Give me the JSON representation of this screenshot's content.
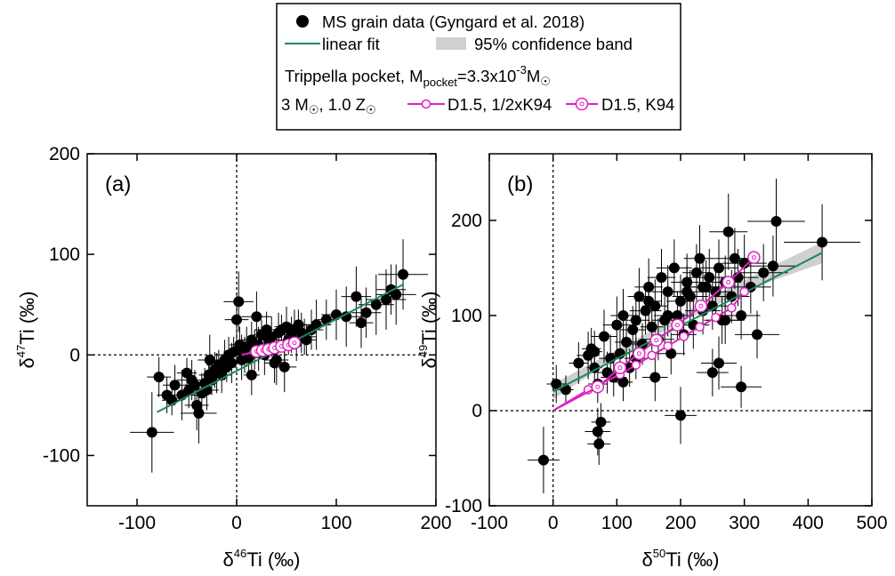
{
  "legend": {
    "grain_label": "MS grain data (Gyngard et al. 2018)",
    "fit_label": "linear fit",
    "band_label": "95% confidence band",
    "pocket_prefix": "Trippella pocket, M",
    "pocket_sub": "pocket",
    "pocket_mid": "=3.3x10",
    "pocket_exp": "-3",
    "pocket_unit": "M",
    "sun": "☉",
    "mass_label": "3 M",
    "z_label": ", 1.0 Z",
    "model1_label": "D1.5, 1/2xK94",
    "model2_label": "D1.5, K94",
    "colors": {
      "grains": "#000000",
      "fit": "#1a8a5a",
      "band": "#d0d0d0",
      "model": "#e020c0"
    }
  },
  "chart_data": [
    {
      "type": "scatter",
      "panel_label": "(a)",
      "xlabel": {
        "prefix": "δ",
        "sup": "46",
        "rest": "Ti (‰)"
      },
      "ylabel": {
        "prefix": "δ",
        "sup": "47",
        "rest": "Ti (‰)"
      },
      "xlim": [
        -150,
        200
      ],
      "ylim": [
        -150,
        200
      ],
      "xticks": [
        -100,
        0,
        100,
        200
      ],
      "yticks": [
        -100,
        0,
        100,
        200
      ],
      "reference_lines": {
        "x": 0,
        "y": 0,
        "style": "dotted"
      },
      "fit": {
        "x": [
          -80,
          167
        ],
        "y": [
          -57,
          70
        ]
      },
      "series": [
        {
          "kind": "grains",
          "x": [
            -85,
            -78,
            -70,
            -65,
            -62,
            -55,
            -50,
            -48,
            -45,
            -42,
            -40,
            -38,
            -35,
            -32,
            -30,
            -28,
            -27,
            -25,
            -22,
            -20,
            -18,
            -15,
            -12,
            -10,
            -8,
            -5,
            -3,
            0,
            2,
            3,
            5,
            5,
            8,
            10,
            12,
            15,
            18,
            20,
            22,
            25,
            28,
            30,
            32,
            35,
            38,
            40,
            42,
            45,
            48,
            50,
            52,
            55,
            58,
            60,
            62,
            65,
            68,
            70,
            75,
            80,
            90,
            100,
            110,
            120,
            125,
            130,
            140,
            150,
            155,
            160,
            167,
            38,
            48,
            22,
            15
          ],
          "y": [
            -77,
            -22,
            -40,
            -45,
            -30,
            -40,
            -18,
            -35,
            -25,
            -30,
            -50,
            -58,
            -38,
            -28,
            -35,
            -20,
            -5,
            -25,
            -15,
            -18,
            -10,
            -20,
            -5,
            -12,
            0,
            -8,
            3,
            35,
            53,
            10,
            -5,
            5,
            0,
            8,
            -3,
            15,
            5,
            38,
            10,
            20,
            0,
            25,
            15,
            18,
            5,
            -5,
            22,
            25,
            10,
            28,
            15,
            20,
            25,
            12,
            30,
            22,
            18,
            15,
            25,
            30,
            35,
            40,
            38,
            58,
            32,
            42,
            50,
            55,
            65,
            60,
            80,
            -8,
            -12,
            2,
            -20
          ],
          "xerr": [
            22,
            12,
            10,
            10,
            12,
            15,
            10,
            8,
            15,
            10,
            12,
            18,
            10,
            8,
            12,
            10,
            12,
            10,
            8,
            10,
            12,
            10,
            8,
            10,
            12,
            8,
            10,
            12,
            15,
            10,
            8,
            10,
            12,
            10,
            8,
            10,
            12,
            15,
            10,
            8,
            10,
            12,
            10,
            8,
            10,
            12,
            10,
            8,
            10,
            12,
            10,
            8,
            10,
            12,
            10,
            8,
            12,
            10,
            12,
            15,
            12,
            15,
            18,
            15,
            12,
            15,
            18,
            20,
            15,
            20,
            25,
            10,
            12,
            10,
            8
          ],
          "yerr": [
            40,
            20,
            18,
            15,
            20,
            25,
            15,
            18,
            20,
            15,
            25,
            30,
            20,
            15,
            20,
            18,
            25,
            15,
            18,
            20,
            15,
            18,
            20,
            15,
            18,
            20,
            15,
            25,
            30,
            18,
            20,
            15,
            18,
            20,
            15,
            18,
            20,
            25,
            18,
            15,
            20,
            18,
            15,
            20,
            18,
            25,
            20,
            15,
            18,
            20,
            15,
            18,
            20,
            18,
            15,
            20,
            18,
            15,
            20,
            25,
            20,
            25,
            30,
            30,
            25,
            25,
            30,
            30,
            25,
            30,
            35,
            20,
            25,
            18,
            20
          ]
        },
        {
          "kind": "model",
          "name": "D1.5, 1/2xK94",
          "x": [
            5,
            20,
            25,
            30,
            35,
            40,
            45,
            50,
            55,
            58
          ],
          "y": [
            0,
            3,
            4,
            5,
            6,
            7,
            8,
            9,
            10,
            11
          ],
          "markers": [
            false,
            true,
            true,
            true,
            true,
            true,
            true,
            true,
            true,
            true
          ]
        },
        {
          "kind": "model",
          "name": "D1.5, K94",
          "x": [
            5,
            20,
            26,
            32,
            38,
            45,
            52,
            58
          ],
          "y": [
            0,
            3.5,
            4.5,
            5.5,
            7,
            8.5,
            10,
            12
          ],
          "markers": [
            false,
            true,
            true,
            true,
            true,
            true,
            true,
            true
          ]
        }
      ]
    },
    {
      "type": "scatter",
      "panel_label": "(b)",
      "xlabel": {
        "prefix": "δ",
        "sup": "50",
        "rest": "Ti (‰)"
      },
      "ylabel": {
        "prefix": "δ",
        "sup": "49",
        "rest": "Ti (‰)"
      },
      "xlim": [
        -100,
        500
      ],
      "ylim": [
        -100,
        270
      ],
      "xticks": [
        -100,
        0,
        100,
        200,
        300,
        400,
        500
      ],
      "yticks": [
        -100,
        0,
        100,
        200
      ],
      "reference_lines": {
        "x": 0,
        "y": 0,
        "style": "dotted"
      },
      "fit": {
        "x": [
          0,
          422
        ],
        "y": [
          20,
          166
        ]
      },
      "band": {
        "x": [
          0,
          100,
          200,
          300,
          350,
          422
        ],
        "lower": [
          12,
          56,
          93,
          125,
          138,
          155
        ],
        "upper": [
          28,
          64,
          101,
          137,
          154,
          177
        ]
      },
      "series": [
        {
          "kind": "grains",
          "x": [
            -15,
            5,
            20,
            40,
            55,
            60,
            65,
            70,
            72,
            75,
            80,
            85,
            90,
            95,
            100,
            105,
            110,
            115,
            120,
            125,
            130,
            135,
            140,
            145,
            150,
            155,
            160,
            165,
            170,
            175,
            180,
            185,
            190,
            195,
            200,
            205,
            210,
            215,
            220,
            225,
            230,
            235,
            240,
            245,
            250,
            255,
            260,
            265,
            270,
            275,
            280,
            285,
            290,
            295,
            300,
            310,
            320,
            330,
            345,
            350,
            422,
            70,
            65,
            150,
            180,
            210,
            235,
            250,
            260,
            270,
            295,
            200,
            160,
            130,
            110
          ],
          "y": [
            -52,
            28,
            22,
            50,
            58,
            65,
            45,
            -22,
            -35,
            -12,
            78,
            40,
            55,
            35,
            90,
            60,
            100,
            72,
            45,
            85,
            95,
            120,
            70,
            105,
            130,
            88,
            110,
            75,
            140,
            95,
            125,
            60,
            150,
            100,
            115,
            80,
            135,
            120,
            90,
            145,
            160,
            105,
            130,
            140,
            110,
            125,
            150,
            95,
            135,
            188,
            120,
            160,
            140,
            100,
            155,
            130,
            80,
            145,
            152,
            199,
            177,
            28,
            62,
            115,
            100,
            125,
            130,
            40,
            50,
            95,
            25,
            -5,
            35,
            55,
            30
          ],
          "xerr": [
            25,
            15,
            12,
            15,
            18,
            15,
            12,
            20,
            18,
            15,
            20,
            15,
            18,
            20,
            22,
            15,
            20,
            18,
            15,
            20,
            22,
            18,
            20,
            25,
            22,
            18,
            20,
            25,
            22,
            20,
            25,
            22,
            28,
            25,
            22,
            20,
            25,
            28,
            25,
            22,
            25,
            28,
            25,
            30,
            28,
            25,
            30,
            28,
            25,
            30,
            28,
            30,
            32,
            30,
            35,
            32,
            35,
            38,
            40,
            45,
            60,
            15,
            12,
            20,
            22,
            25,
            28,
            25,
            28,
            30,
            32,
            25,
            20,
            18,
            15
          ],
          "yerr": [
            35,
            20,
            15,
            22,
            25,
            22,
            20,
            25,
            22,
            20,
            28,
            22,
            25,
            20,
            30,
            25,
            28,
            22,
            20,
            25,
            28,
            30,
            22,
            25,
            30,
            25,
            28,
            22,
            30,
            25,
            28,
            22,
            30,
            25,
            28,
            22,
            30,
            28,
            25,
            30,
            35,
            25,
            28,
            30,
            25,
            28,
            30,
            25,
            28,
            40,
            28,
            32,
            30,
            25,
            30,
            28,
            25,
            30,
            32,
            45,
            40,
            20,
            22,
            25,
            22,
            28,
            30,
            25,
            28,
            25,
            22,
            30,
            25,
            22,
            20
          ]
        },
        {
          "kind": "model",
          "name": "D1.5, 1/2xK94",
          "x": [
            0,
            55,
            105,
            130,
            155,
            180,
            205,
            230,
            255,
            280,
            300
          ],
          "y": [
            0,
            22,
            38,
            48,
            58,
            68,
            78,
            88,
            98,
            108,
            125
          ],
          "markers": [
            false,
            true,
            true,
            true,
            true,
            true,
            true,
            true,
            true,
            true,
            true
          ]
        },
        {
          "kind": "model",
          "name": "D1.5, K94",
          "x": [
            0,
            70,
            105,
            135,
            162,
            195,
            232,
            275,
            315
          ],
          "y": [
            0,
            25,
            45,
            60,
            74,
            90,
            110,
            135,
            161
          ],
          "markers": [
            false,
            true,
            true,
            true,
            true,
            true,
            true,
            true,
            true
          ]
        }
      ]
    }
  ]
}
